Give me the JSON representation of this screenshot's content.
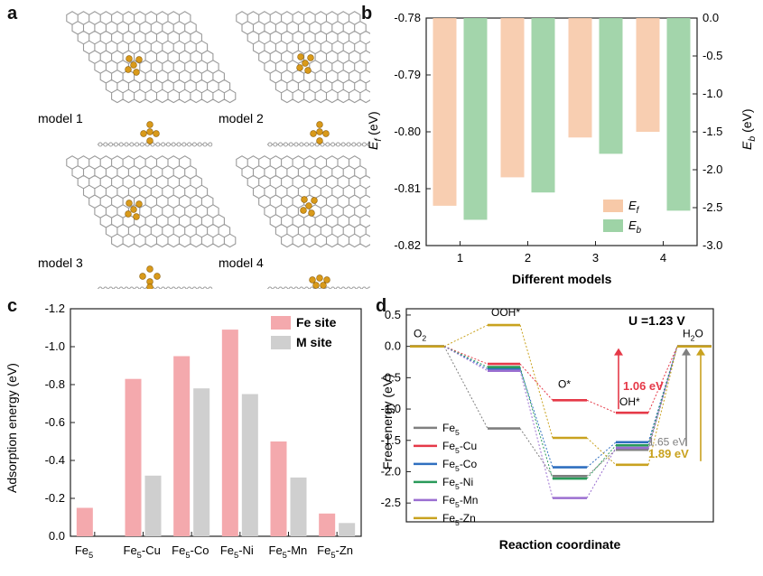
{
  "panel_labels": {
    "a": "a",
    "b": "b",
    "c": "c",
    "d": "d"
  },
  "panel_a": {
    "models": [
      {
        "label": "model 1"
      },
      {
        "label": "model 2"
      },
      {
        "label": "model 3"
      },
      {
        "label": "model 4"
      }
    ],
    "colors": {
      "carbon": "#9a9a9a",
      "iron": "#d99a1a"
    }
  },
  "chart_data": [
    {
      "id": "b",
      "type": "bar",
      "categories": [
        "1",
        "2",
        "3",
        "4"
      ],
      "xlabel": "Different models",
      "ylabel_left": "E_f (eV)",
      "ylabel_right": "E_b (eV)",
      "ylim_left": [
        -0.82,
        -0.78
      ],
      "ylim_right": [
        -3.0,
        0.0
      ],
      "yticks_left": [
        "-0.78",
        "-0.79",
        "-0.80",
        "-0.81",
        "-0.82"
      ],
      "yticks_right": [
        "0.0",
        "-0.5",
        "-1.0",
        "-1.5",
        "-2.0",
        "-2.5",
        "-3.0"
      ],
      "series": [
        {
          "name": "E_f",
          "axis": "left",
          "color": "#f7c9a8",
          "values": [
            -0.813,
            -0.808,
            -0.801,
            -0.8
          ]
        },
        {
          "name": "E_b",
          "axis": "right",
          "color": "#9ed3a6",
          "values": [
            -2.66,
            -2.3,
            -1.79,
            -2.54
          ]
        }
      ],
      "legend_position": "bottom-right"
    },
    {
      "id": "c",
      "type": "bar",
      "categories": [
        "Fe5",
        "Fe5-Cu",
        "Fe5-Co",
        "Fe5-Ni",
        "Fe5-Mn",
        "Fe5-Zn"
      ],
      "ylabel": "Adsorption energy (eV)",
      "ylim": [
        0.0,
        -1.2
      ],
      "yticks": [
        "0.0",
        "-0.2",
        "-0.4",
        "-0.6",
        "-0.8",
        "-1.0",
        "-1.2"
      ],
      "series": [
        {
          "name": "Fe site",
          "color": "#f4a9ad",
          "values": [
            -0.15,
            -0.83,
            -0.95,
            -1.09,
            -0.5,
            -0.12
          ]
        },
        {
          "name": "M site",
          "color": "#cfcfcf",
          "values": [
            null,
            -0.32,
            -0.78,
            -0.75,
            -0.31,
            -0.07
          ]
        }
      ],
      "legend_position": "top-right"
    },
    {
      "id": "d",
      "type": "line",
      "title": "U =1.23 V",
      "xlabel": "Reaction coordinate",
      "ylabel": "Free energy (eV)",
      "ylim": [
        -2.8,
        0.6
      ],
      "yticks": [
        "0.5",
        "0.0",
        "-0.5",
        "-1.0",
        "-1.5",
        "-2.0",
        "-2.5"
      ],
      "step_labels": [
        "O2",
        "OOH*",
        "O*",
        "OH*",
        "H2O"
      ],
      "series": [
        {
          "name": "Fe5",
          "color": "#7f7f7f",
          "values": [
            0.0,
            -1.31,
            -2.07,
            -1.65,
            0.0
          ]
        },
        {
          "name": "Fe5-Cu",
          "color": "#e53948",
          "values": [
            0.0,
            -0.28,
            -0.86,
            -1.06,
            0.0
          ]
        },
        {
          "name": "Fe5-Co",
          "color": "#2f6fbf",
          "values": [
            0.0,
            -0.36,
            -1.93,
            -1.53,
            0.0
          ]
        },
        {
          "name": "Fe5-Ni",
          "color": "#2a9a5a",
          "values": [
            0.0,
            -0.33,
            -2.11,
            -1.58,
            0.0
          ]
        },
        {
          "name": "Fe5-Mn",
          "color": "#9b6fd1",
          "values": [
            0.0,
            -0.39,
            -2.42,
            -1.62,
            0.0
          ]
        },
        {
          "name": "Fe5-Zn",
          "color": "#c9a21f",
          "values": [
            0.0,
            0.34,
            -1.46,
            -1.89,
            0.0
          ]
        }
      ],
      "annotations": [
        {
          "text": "1.06 eV",
          "color": "#e53948"
        },
        {
          "text": "1.65 eV",
          "color": "#7f7f7f"
        },
        {
          "text": "1.89 eV",
          "color": "#c9a21f"
        }
      ],
      "legend_position": "bottom-left"
    }
  ]
}
